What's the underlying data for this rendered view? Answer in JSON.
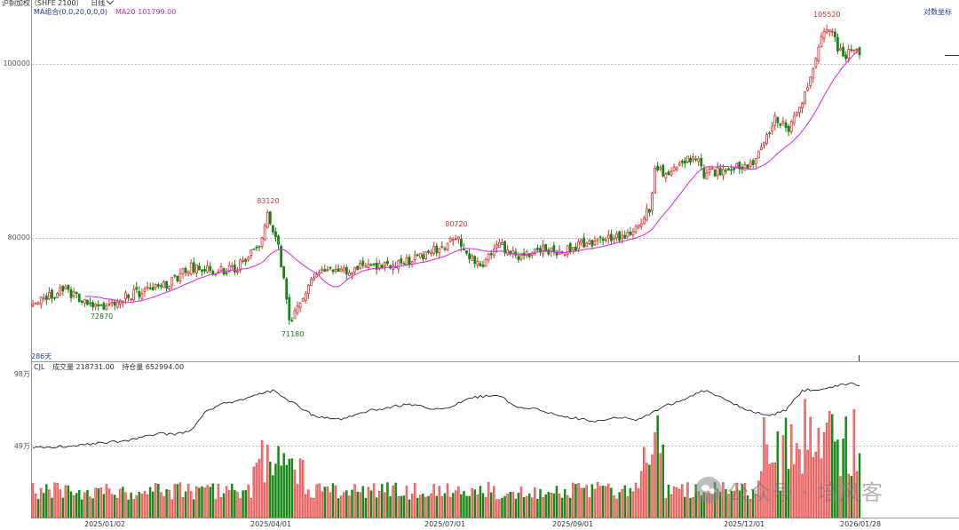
{
  "header": {
    "instrument_label": "沪铜加权（SHFE 2100）",
    "timeframe_label": "日线",
    "ma_label": "MA组合(0,0,20,0,0,0)",
    "ma20_label": "MA20 101799.00",
    "log_axis_label": "对数坐标",
    "bar_count_label": "286天"
  },
  "volume_panel": {
    "header": "CJL",
    "volume_label": "成交量 218731.00",
    "oi_label": "持仓量 652994.00",
    "axis_top": "98万",
    "axis_mid": "49万"
  },
  "watermark": {
    "text": "公众号 · 培风客",
    "icon": "wechat-icon"
  },
  "colors": {
    "up": "#e03030",
    "down": "#118811",
    "ma": "#dd22dd",
    "oi": "#222222"
  },
  "chart_data": [
    {
      "type": "candlestick",
      "title": "沪铜加权（SHFE 2100）",
      "yscale": "log",
      "ylim": [
        68500,
        108000
      ],
      "ytick_labels": [
        "80000",
        "100000"
      ],
      "ytick_values": [
        80000,
        100000
      ],
      "xtick_labels": [
        "2025/01/02",
        "2025/04/01",
        "2025/07/01",
        "2025/09/01",
        "2025/12/01",
        "2026/01/28"
      ],
      "annotations": [
        {
          "text": "83120",
          "value": 83120,
          "kind": "high"
        },
        {
          "text": "72870",
          "value": 72870,
          "kind": "low"
        },
        {
          "text": "71180",
          "value": 71180,
          "kind": "low"
        },
        {
          "text": "80720",
          "value": 80720,
          "kind": "high"
        },
        {
          "text": "105520",
          "value": 105520,
          "kind": "high"
        }
      ],
      "series": [
        {
          "name": "MA20",
          "value_last": 101799
        }
      ],
      "anchors": [
        [
          0,
          73800
        ],
        [
          12,
          74800
        ],
        [
          22,
          73300
        ],
        [
          24,
          73000
        ],
        [
          28,
          73600
        ],
        [
          38,
          74500
        ],
        [
          50,
          75500
        ],
        [
          58,
          77000
        ],
        [
          68,
          76700
        ],
        [
          75,
          77000
        ],
        [
          83,
          79300
        ],
        [
          86,
          82300
        ],
        [
          88,
          81000
        ],
        [
          90,
          79000
        ],
        [
          92,
          76000
        ],
        [
          94,
          72000
        ],
        [
          95,
          71800
        ],
        [
          98,
          73800
        ],
        [
          102,
          75500
        ],
        [
          106,
          77000
        ],
        [
          115,
          76700
        ],
        [
          122,
          77100
        ],
        [
          135,
          77400
        ],
        [
          145,
          78500
        ],
        [
          150,
          79000
        ],
        [
          155,
          80200
        ],
        [
          158,
          79000
        ],
        [
          162,
          77400
        ],
        [
          165,
          77300
        ],
        [
          170,
          79400
        ],
        [
          178,
          78000
        ],
        [
          186,
          78800
        ],
        [
          194,
          78600
        ],
        [
          202,
          79400
        ],
        [
          210,
          80000
        ],
        [
          218,
          80300
        ],
        [
          222,
          81500
        ],
        [
          226,
          83000
        ],
        [
          228,
          87000
        ],
        [
          232,
          87000
        ],
        [
          236,
          87400
        ],
        [
          240,
          88500
        ],
        [
          244,
          88900
        ],
        [
          246,
          86800
        ],
        [
          252,
          87200
        ],
        [
          258,
          87800
        ],
        [
          262,
          87400
        ],
        [
          268,
          90000
        ],
        [
          272,
          93000
        ],
        [
          277,
          92200
        ],
        [
          282,
          95000
        ],
        [
          286,
          99800
        ],
        [
          289,
          103800
        ],
        [
          292,
          104700
        ],
        [
          295,
          102000
        ],
        [
          298,
          101000
        ],
        [
          301,
          102200
        ],
        [
          303,
          101500
        ]
      ]
    },
    {
      "type": "bar",
      "title": "CJL",
      "ylim": [
        0,
        980000
      ],
      "ytick_labels": [
        "49万",
        "98万"
      ],
      "ytick_values": [
        490000,
        980000
      ],
      "series": [
        {
          "name": "成交量",
          "value_last": 218731
        },
        {
          "name": "持仓量",
          "value_last": 652994
        }
      ]
    }
  ]
}
